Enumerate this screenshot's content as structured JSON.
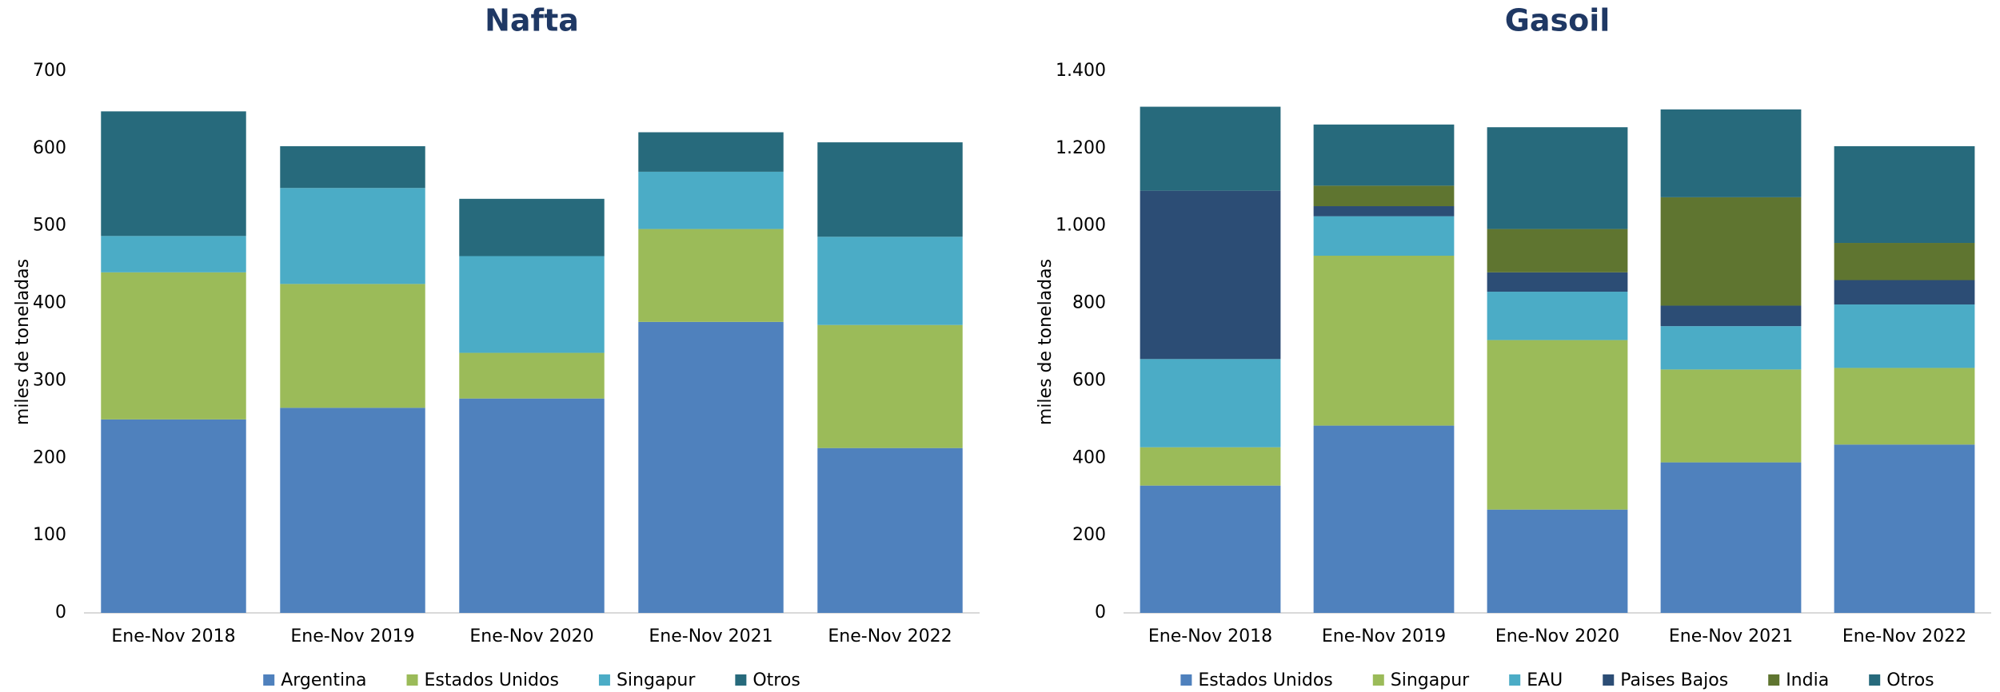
{
  "chart_data": [
    {
      "type": "bar",
      "stacked": true,
      "title": "Nafta",
      "ylabel": "miles de toneladas",
      "categories": [
        "Ene-Nov 2018",
        "Ene-Nov 2019",
        "Ene-Nov 2020",
        "Ene-Nov 2021",
        "Ene-Nov 2022"
      ],
      "series": [
        {
          "name": "Argentina",
          "color": "#4f81bd",
          "values": [
            250,
            265,
            277,
            376,
            213
          ]
        },
        {
          "name": "Estados Unidos",
          "color": "#9bbb59",
          "values": [
            190,
            160,
            59,
            120,
            159
          ]
        },
        {
          "name": "Singapur",
          "color": "#4bacc6",
          "values": [
            47,
            124,
            125,
            74,
            114
          ]
        },
        {
          "name": "Otros",
          "color": "#276a7c",
          "values": [
            161,
            54,
            74,
            51,
            122
          ]
        }
      ],
      "ylim": [
        0,
        700
      ],
      "yticks": [
        0,
        100,
        200,
        300,
        400,
        500,
        600,
        700
      ],
      "legend": "bottom"
    },
    {
      "type": "bar",
      "stacked": true,
      "title": "Gasoil",
      "ylabel": "miles de toneladas",
      "categories": [
        "Ene-Nov 2018",
        "Ene-Nov 2019",
        "Ene-Nov 2020",
        "Ene-Nov 2021",
        "Ene-Nov 2022"
      ],
      "series": [
        {
          "name": "Estados Unidos",
          "color": "#4f81bd",
          "values": [
            329,
            484,
            267,
            389,
            435
          ]
        },
        {
          "name": "Singapur",
          "color": "#9bbb59",
          "values": [
            99,
            439,
            438,
            240,
            198
          ]
        },
        {
          "name": "EAU",
          "color": "#4bacc6",
          "values": [
            228,
            102,
            125,
            112,
            164
          ]
        },
        {
          "name": "Paises Bajos",
          "color": "#2c4d75",
          "values": [
            435,
            26,
            50,
            53,
            63
          ]
        },
        {
          "name": "India",
          "color": "#5f7530",
          "values": [
            0,
            53,
            112,
            280,
            96
          ]
        },
        {
          "name": "Otros",
          "color": "#276a7c",
          "values": [
            217,
            158,
            263,
            227,
            250
          ]
        }
      ],
      "ylim": [
        0,
        1400
      ],
      "yticks": [
        0,
        200,
        400,
        600,
        800,
        {
          "value": 1000,
          "label": "1.000"
        },
        {
          "value": 1200,
          "label": "1.200"
        },
        {
          "value": 1400,
          "label": "1.400"
        }
      ],
      "legend": "bottom"
    }
  ]
}
